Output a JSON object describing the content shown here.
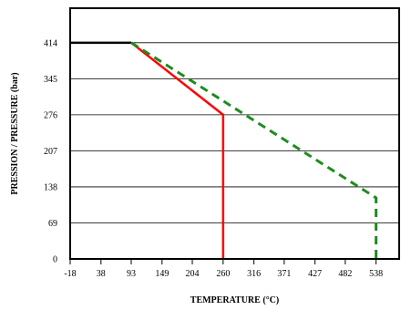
{
  "chart_data": {
    "type": "line",
    "title": "",
    "xlabel": "TEMPERATURE (°C)",
    "ylabel": "PRESSION / PRESSURE (bar)",
    "xlim": [
      -18,
      580
    ],
    "ylim": [
      0,
      480
    ],
    "x_ticks": [
      "-18",
      "38",
      "93",
      "149",
      "204",
      "260",
      "316",
      "371",
      "427",
      "482",
      "538"
    ],
    "y_ticks": [
      "0",
      "69",
      "138",
      "207",
      "276",
      "345",
      "414"
    ],
    "grid": "horizontal",
    "legend": "none",
    "series": [
      {
        "color": "#000000",
        "style": "solid",
        "points": [
          [
            -18,
            414
          ],
          [
            93,
            414
          ]
        ]
      },
      {
        "color": "#ff0000",
        "style": "solid",
        "points": [
          [
            93,
            414
          ],
          [
            260,
            276
          ],
          [
            260,
            0
          ]
        ]
      },
      {
        "color": "#1e8c1e",
        "style": "dashed",
        "points": [
          [
            93,
            414
          ],
          [
            538,
            117
          ],
          [
            538,
            0
          ]
        ]
      }
    ]
  }
}
